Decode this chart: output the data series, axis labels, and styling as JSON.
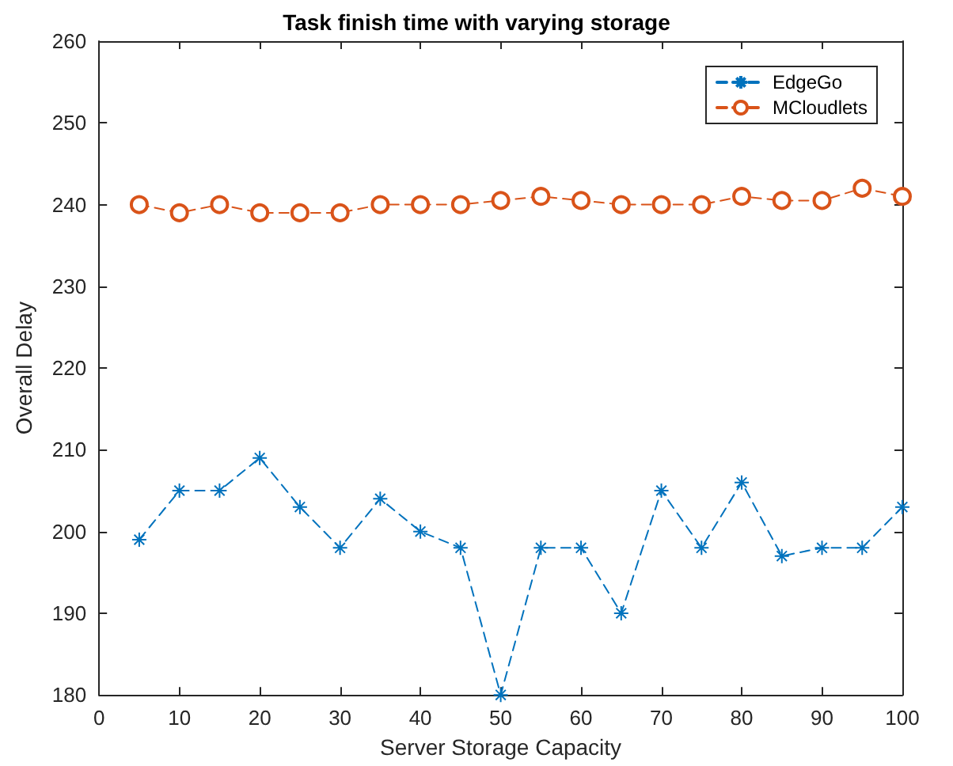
{
  "chart_data": {
    "type": "line",
    "title": "Task finish time with varying storage",
    "xlabel": "Server Storage Capacity",
    "ylabel": "Overall Delay",
    "x": [
      5,
      10,
      15,
      20,
      25,
      30,
      35,
      40,
      45,
      50,
      55,
      60,
      65,
      70,
      75,
      80,
      85,
      90,
      95,
      100
    ],
    "series": [
      {
        "name": "EdgeGo",
        "color": "#0072bd",
        "marker": "cross",
        "line_style": "dashed",
        "values": [
          199,
          205,
          205,
          209,
          203,
          198,
          204,
          200,
          198,
          180,
          198,
          198,
          190,
          205,
          198,
          206,
          197,
          198,
          198,
          203
        ]
      },
      {
        "name": "MCloudlets",
        "color": "#d95319",
        "marker": "circle",
        "line_style": "dashed",
        "values": [
          240,
          239,
          240,
          239,
          239,
          239,
          240,
          240,
          240,
          240.5,
          241,
          240.5,
          240,
          240,
          240,
          241,
          240.5,
          240.5,
          242,
          241
        ]
      }
    ],
    "xlim": [
      0,
      100
    ],
    "xticks": [
      0,
      10,
      20,
      30,
      40,
      50,
      60,
      70,
      80,
      90,
      100
    ],
    "ylim": [
      180,
      260
    ],
    "yticks": [
      180,
      190,
      200,
      210,
      220,
      230,
      240,
      250,
      260
    ],
    "legend": "top right",
    "grid": false
  }
}
